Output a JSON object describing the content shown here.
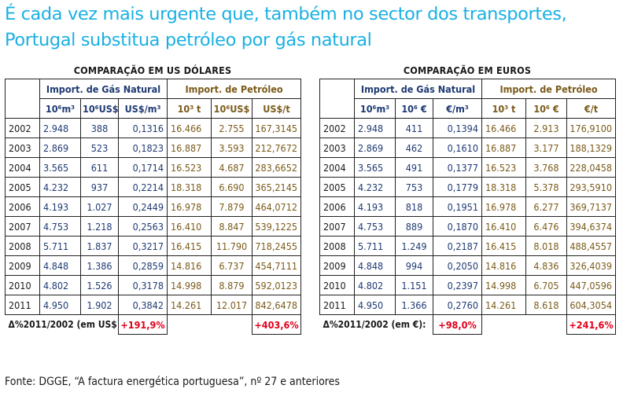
{
  "title": "É cada vez mais urgente que, também no sector dos transportes, Portugal substitua petróleo por gás natural",
  "usd": {
    "panel_title": "COMPARAÇÃO EM US DÓLARES",
    "gas_header": "Import. de Gás Natural",
    "oil_header": "Import. de Petróleo",
    "units": [
      "10⁶m³",
      "10⁶US$",
      "US$/m³",
      "10³ t",
      "10⁶US$",
      "US$/t"
    ],
    "rows": [
      {
        "year": "2002",
        "g1": "2.948",
        "g2": "388",
        "g3": "0,1316",
        "o1": "16.466",
        "o2": "2.755",
        "o3": "167,3145"
      },
      {
        "year": "2003",
        "g1": "2.869",
        "g2": "523",
        "g3": "0,1823",
        "o1": "16.887",
        "o2": "3.593",
        "o3": "212,7672"
      },
      {
        "year": "2004",
        "g1": "3.565",
        "g2": "611",
        "g3": "0,1714",
        "o1": "16.523",
        "o2": "4.687",
        "o3": "283,6652"
      },
      {
        "year": "2005",
        "g1": "4.232",
        "g2": "937",
        "g3": "0,2214",
        "o1": "18.318",
        "o2": "6.690",
        "o3": "365,2145"
      },
      {
        "year": "2006",
        "g1": "4.193",
        "g2": "1.027",
        "g3": "0,2449",
        "o1": "16.978",
        "o2": "7.879",
        "o3": "464,0712"
      },
      {
        "year": "2007",
        "g1": "4.753",
        "g2": "1.218",
        "g3": "0,2563",
        "o1": "16.410",
        "o2": "8.847",
        "o3": "539,1225"
      },
      {
        "year": "2008",
        "g1": "5.711",
        "g2": "1.837",
        "g3": "0,3217",
        "o1": "16.415",
        "o2": "11.790",
        "o3": "718,2455"
      },
      {
        "year": "2009",
        "g1": "4.848",
        "g2": "1.386",
        "g3": "0,2859",
        "o1": "14.816",
        "o2": "6.737",
        "o3": "454,7111"
      },
      {
        "year": "2010",
        "g1": "4.802",
        "g2": "1.526",
        "g3": "0,3178",
        "o1": "14.998",
        "o2": "8.879",
        "o3": "592,0123"
      },
      {
        "year": "2011",
        "g1": "4.950",
        "g2": "1.902",
        "g3": "0,3842",
        "o1": "14.261",
        "o2": "12.017",
        "o3": "842,6478"
      }
    ],
    "delta_label": "Δ%2011/2002 (em US$):",
    "delta_gas": "+191,9%",
    "delta_oil": "+403,6%"
  },
  "eur": {
    "panel_title": "COMPARAÇÃO EM EUROS",
    "gas_header": "Import. de Gás Natural",
    "oil_header": "Import. de Petróleo",
    "units": [
      "10⁶m³",
      "10⁶ €",
      "€/m³",
      "10³ t",
      "10⁶ €",
      "€/t"
    ],
    "rows": [
      {
        "year": "2002",
        "g1": "2.948",
        "g2": "411",
        "g3": "0,1394",
        "o1": "16.466",
        "o2": "2.913",
        "o3": "176,9100"
      },
      {
        "year": "2003",
        "g1": "2.869",
        "g2": "462",
        "g3": "0,1610",
        "o1": "16.887",
        "o2": "3.177",
        "o3": "188,1329"
      },
      {
        "year": "2004",
        "g1": "3.565",
        "g2": "491",
        "g3": "0,1377",
        "o1": "16.523",
        "o2": "3.768",
        "o3": "228,0458"
      },
      {
        "year": "2005",
        "g1": "4.232",
        "g2": "753",
        "g3": "0,1779",
        "o1": "18.318",
        "o2": "5.378",
        "o3": "293,5910"
      },
      {
        "year": "2006",
        "g1": "4.193",
        "g2": "818",
        "g3": "0,1951",
        "o1": "16.978",
        "o2": "6.277",
        "o3": "369,7137"
      },
      {
        "year": "2007",
        "g1": "4.753",
        "g2": "889",
        "g3": "0,1870",
        "o1": "16.410",
        "o2": "6.476",
        "o3": "394,6374"
      },
      {
        "year": "2008",
        "g1": "5.711",
        "g2": "1.249",
        "g3": "0,2187",
        "o1": "16.415",
        "o2": "8.018",
        "o3": "488,4557"
      },
      {
        "year": "2009",
        "g1": "4.848",
        "g2": "994",
        "g3": "0,2050",
        "o1": "14.816",
        "o2": "4.836",
        "o3": "326,4039"
      },
      {
        "year": "2010",
        "g1": "4.802",
        "g2": "1.151",
        "g3": "0,2397",
        "o1": "14.998",
        "o2": "6.705",
        "o3": "447,0596"
      },
      {
        "year": "2011",
        "g1": "4.950",
        "g2": "1.366",
        "g3": "0,2760",
        "o1": "14.261",
        "o2": "8.618",
        "o3": "604,3054"
      }
    ],
    "delta_label": "Δ%2011/2002 (em €):",
    "delta_gas": "+98,0%",
    "delta_oil": "+241,6%"
  },
  "source": "Fonte: DGGE, “A factura energética portuguesa”, nº 27 e anteriores"
}
